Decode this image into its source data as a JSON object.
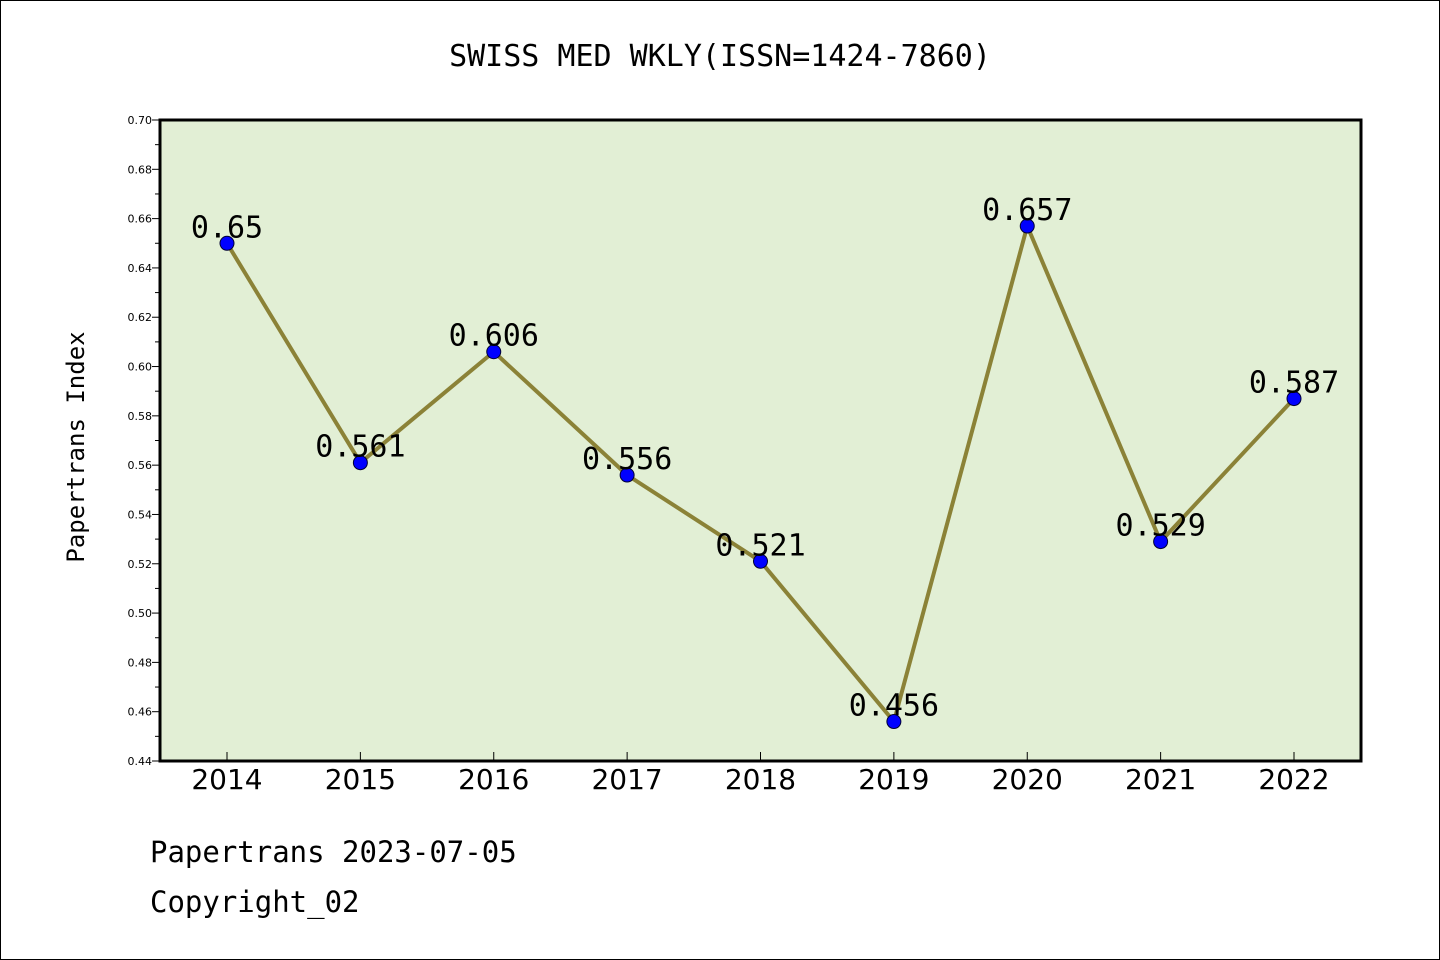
{
  "chart_data": {
    "type": "line",
    "title": "SWISS MED WKLY(ISSN=1424-7860)",
    "xlabel": "",
    "ylabel": "Papertrans Index",
    "categories": [
      "2014",
      "2015",
      "2016",
      "2017",
      "2018",
      "2019",
      "2020",
      "2021",
      "2022"
    ],
    "values": [
      0.65,
      0.561,
      0.606,
      0.556,
      0.521,
      0.456,
      0.657,
      0.529,
      0.587
    ],
    "data_labels": [
      "0.65",
      "0.561",
      "0.606",
      "0.556",
      "0.521",
      "0.456",
      "0.657",
      "0.529",
      "0.587"
    ],
    "ylim": [
      0.44,
      0.7
    ],
    "yticks": [
      0.44,
      0.46,
      0.48,
      0.5,
      0.52,
      0.54,
      0.56,
      0.58,
      0.6,
      0.62,
      0.64,
      0.66,
      0.68,
      0.7
    ],
    "ytick_labels": [
      "0.44",
      "0.46",
      "0.48",
      "0.50",
      "0.52",
      "0.54",
      "0.56",
      "0.58",
      "0.60",
      "0.62",
      "0.64",
      "0.66",
      "0.68",
      "0.70"
    ],
    "grid": false,
    "legend": "none",
    "colors": {
      "plot_background": "#e2efd5",
      "line": "#8b8237",
      "marker": "#0000ff"
    }
  },
  "footer": {
    "line1": "Papertrans 2023-07-05",
    "line2": "Copyright_02"
  }
}
